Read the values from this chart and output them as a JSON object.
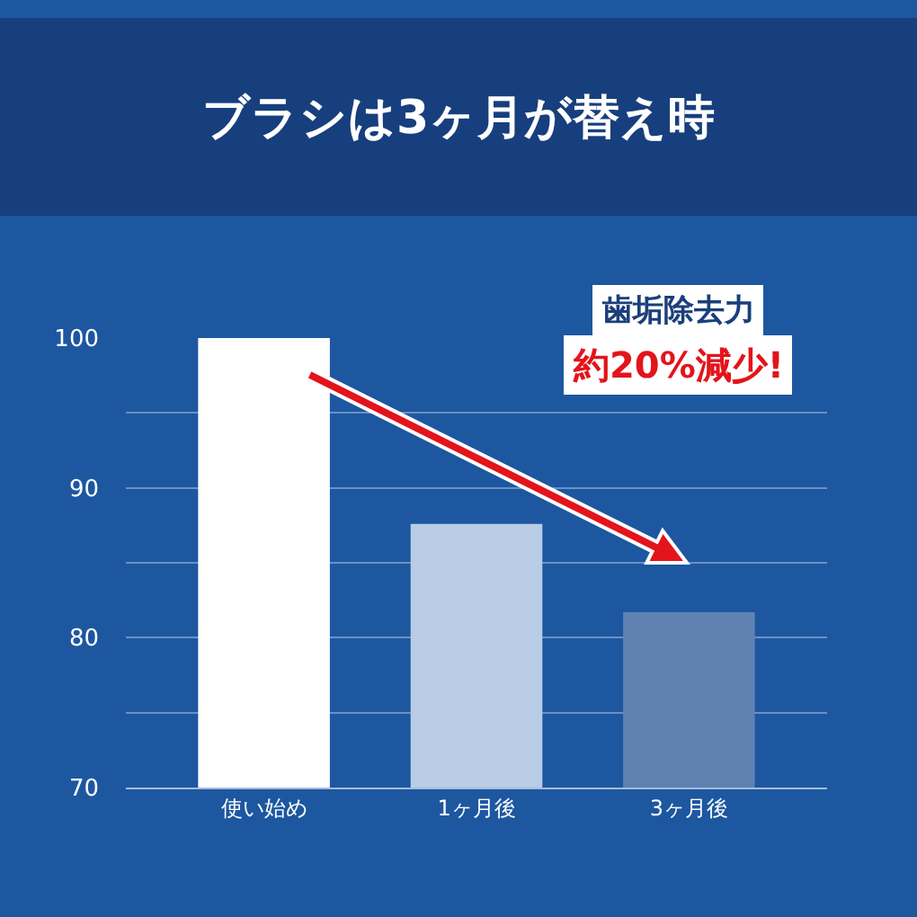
{
  "chart_data": {
    "type": "bar",
    "title": "ブラシは3ヶ月が替え時",
    "categories": [
      "使い始め",
      "1ヶ月後",
      "3ヶ月後"
    ],
    "values": [
      100,
      87.6,
      81.7
    ],
    "colors": [
      "#ffffff",
      "#b8cce6",
      "#5f82b3"
    ],
    "ylim": [
      70,
      100
    ],
    "yticks": [
      70,
      {
        "value": 75,
        "label": null
      },
      80,
      {
        "value": 85,
        "label": null
      },
      90,
      {
        "value": 95,
        "label": null
      },
      100
    ],
    "grid": "y",
    "annotations": [
      "歯垢除去力",
      "約20%減少!"
    ]
  }
}
